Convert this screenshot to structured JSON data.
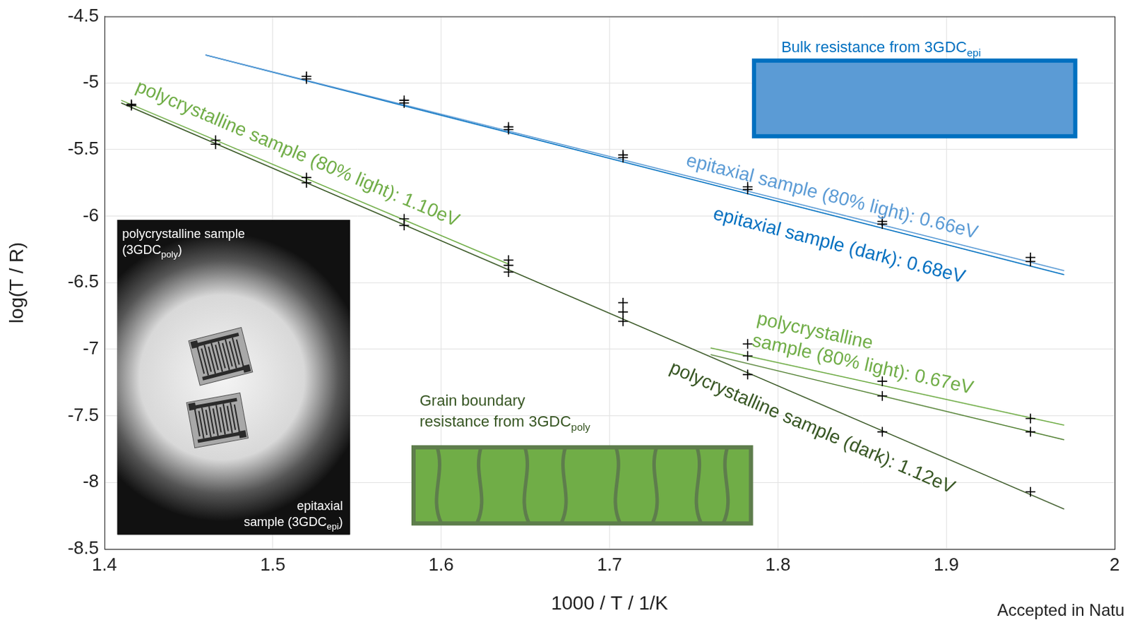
{
  "chart_data": {
    "type": "scatter",
    "x_label": "1000 / T / 1/K",
    "y_label": "log(T / R)",
    "xlim": [
      1.4,
      2
    ],
    "ylim": [
      -8.5,
      -4.5
    ],
    "xticks": [
      1.4,
      1.5,
      1.6,
      1.7,
      1.8,
      1.9,
      2
    ],
    "yticks": [
      -8.5,
      -8,
      -7.5,
      -7,
      -6.5,
      -6,
      -5.5,
      -5,
      -4.5
    ],
    "grid": true,
    "series": [
      {
        "type": "scatter",
        "marker": "plus",
        "color": "#000000",
        "x": [
          1.52,
          1.578,
          1.64,
          1.708,
          1.782,
          1.862,
          1.95
        ],
        "values": [
          -4.97,
          -5.15,
          -5.35,
          -5.56,
          -5.8,
          -6.06,
          -6.34
        ]
      },
      {
        "type": "scatter",
        "marker": "plus",
        "color": "#000000",
        "x": [
          1.52,
          1.578,
          1.64,
          1.708,
          1.782,
          1.862,
          1.95
        ],
        "values": [
          -4.95,
          -5.13,
          -5.33,
          -5.54,
          -5.78,
          -6.04,
          -6.31
        ]
      },
      {
        "type": "scatter",
        "marker": "plus",
        "color": "#000000",
        "x": [
          1.416,
          1.466,
          1.52,
          1.578,
          1.64,
          1.708,
          1.782,
          1.862,
          1.95
        ],
        "values": [
          -5.17,
          -5.46,
          -5.75,
          -6.07,
          -6.42,
          -6.79,
          -7.19,
          -7.62,
          -8.07
        ]
      },
      {
        "type": "scatter",
        "marker": "plus",
        "color": "#000000",
        "x": [
          1.416,
          1.466,
          1.52,
          1.578,
          1.64,
          1.708,
          1.782,
          1.862,
          1.95
        ],
        "values": [
          -5.16,
          -5.43,
          -5.71,
          -6.02,
          -6.33,
          -6.65,
          -6.96,
          -7.24,
          -7.52
        ]
      },
      {
        "type": "scatter",
        "marker": "plus",
        "color": "#000000",
        "x": [
          1.64,
          1.708,
          1.782,
          1.862,
          1.95
        ],
        "values": [
          -6.37,
          -6.72,
          -7.05,
          -7.35,
          -7.62
        ]
      },
      {
        "type": "line",
        "line_style": "solid",
        "color": "#5b9bd5",
        "x": [
          1.46,
          1.97
        ],
        "values": [
          -4.79,
          -6.41
        ]
      },
      {
        "type": "line",
        "line_style": "solid",
        "color": "#0070c0",
        "x": [
          1.46,
          1.97
        ],
        "values": [
          -4.79,
          -6.44
        ]
      },
      {
        "type": "line",
        "line_style": "solid",
        "color": "#70ad47",
        "x": [
          1.41,
          1.64
        ],
        "values": [
          -5.13,
          -6.36
        ]
      },
      {
        "type": "line",
        "line_style": "solid",
        "color": "#375623",
        "x": [
          1.41,
          1.97
        ],
        "values": [
          -5.15,
          -8.2
        ]
      },
      {
        "type": "line",
        "line_style": "solid",
        "color": "#70ad47",
        "x": [
          1.76,
          1.97
        ],
        "values": [
          -6.99,
          -7.57
        ]
      },
      {
        "type": "line",
        "line_style": "solid",
        "color": "#548235",
        "x": [
          1.76,
          1.97
        ],
        "values": [
          -7.04,
          -7.68
        ]
      }
    ],
    "annotations": [
      {
        "text": [
          "epitaxial sample (80% light): 0.66eV"
        ],
        "series": 5,
        "x": 1.745,
        "y": -5.62,
        "color": "#5b9bd5"
      },
      {
        "text": [
          "epitaxial sample (dark): 0.68eV"
        ],
        "series": 6,
        "x": 1.761,
        "y": -6.02,
        "color": "#0070c0"
      },
      {
        "text": [
          "polycrystalline sample (80% light): 1.10eV"
        ],
        "series": 7,
        "x": 1.418,
        "y": -5.06,
        "color": "#70ad47"
      },
      {
        "text": [
          "polycrystalline sample (dark): 1.12eV"
        ],
        "series": 8,
        "x": 1.735,
        "y": -7.17,
        "color": "#375623"
      },
      {
        "text": [
          "polycrystalline",
          "sample (80% light): 0.67eV"
        ],
        "series": 9,
        "x": 1.787,
        "y": -6.81,
        "color": "#70ad47"
      }
    ],
    "inset_photo": {
      "top_left": [
        [
          {
            "text": "polycrystalline sample"
          }
        ],
        [
          {
            "text": "(3GDC"
          },
          {
            "text": "poly",
            "sub": true
          },
          {
            "text": ")"
          }
        ]
      ],
      "bottom_right": [
        [
          {
            "text": "epitaxial"
          }
        ],
        [
          {
            "text": "sample (3GDC"
          },
          {
            "text": "epi",
            "sub": true
          },
          {
            "text": ")"
          }
        ]
      ]
    },
    "panels": [
      {
        "kind": "bulk",
        "color": "#0070c0",
        "title": [
          [
            {
              "text": "Bulk resistance from 3GDC"
            },
            {
              "text": "epi",
              "sub": true
            }
          ]
        ]
      },
      {
        "kind": "grain",
        "color": "#375623",
        "title": [
          [
            {
              "text": "Grain boundary"
            }
          ],
          [
            {
              "text": "resistance from 3GDC"
            },
            {
              "text": "poly",
              "sub": true
            }
          ]
        ]
      }
    ],
    "note": "Accepted in Natu"
  }
}
